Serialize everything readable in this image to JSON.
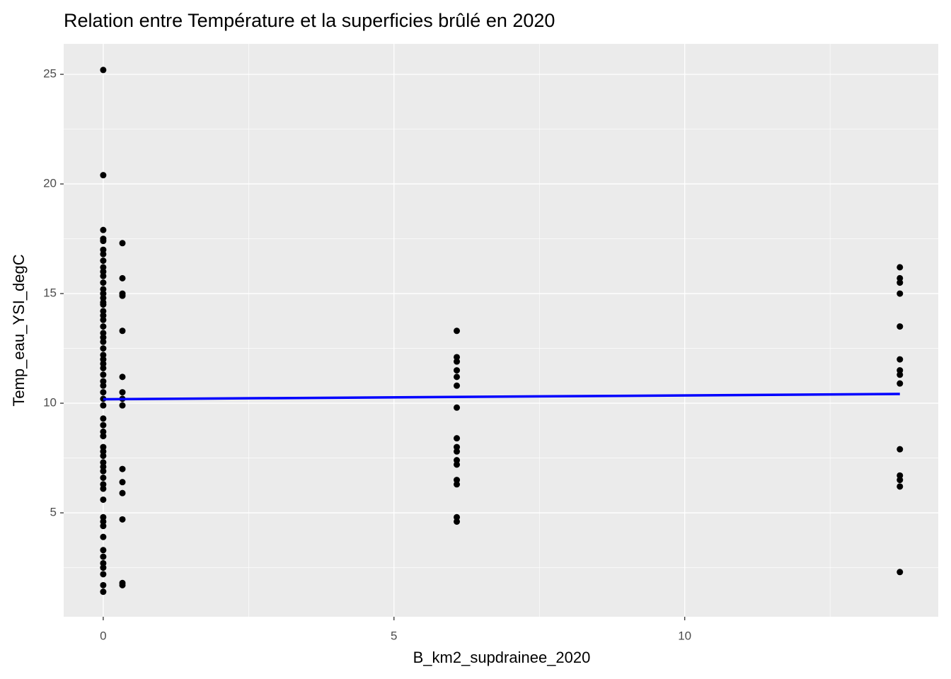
{
  "chart_data": {
    "type": "scatter",
    "title": "Relation entre Température et la superficies brûlé en 2020",
    "x_label": "B_km2_supdrainee_2020",
    "y_label": "Temp_eau_YSI_degC",
    "xlim": [
      -0.68,
      14.36
    ],
    "ylim": [
      0.26,
      26.39
    ],
    "xticks": [
      0,
      5,
      10
    ],
    "yticks": [
      5,
      10,
      15,
      20,
      25
    ],
    "x_minor_ticks": [
      2.5,
      7.5,
      12.5
    ],
    "y_minor_ticks": [
      2.5,
      7.5,
      12.5,
      17.5,
      22.5
    ],
    "grid": true,
    "point_color": "#000000",
    "groups": [
      {
        "x": 0,
        "y": [
          25.2,
          20.4,
          17.9,
          17.5,
          17.4,
          17.0,
          16.8,
          16.5,
          16.2,
          16.0,
          15.8,
          15.5,
          15.2,
          15.0,
          14.8,
          14.6,
          14.5,
          14.2,
          14.0,
          13.8,
          13.5,
          13.2,
          13.0,
          12.8,
          12.5,
          12.2,
          12.0,
          11.8,
          11.6,
          11.3,
          11.0,
          10.8,
          10.5,
          10.2,
          9.9,
          9.3,
          9.0,
          8.7,
          8.5,
          8.0,
          7.8,
          7.6,
          7.3,
          7.1,
          6.9,
          6.6,
          6.3,
          6.1,
          5.6,
          4.8,
          4.6,
          4.4,
          3.9,
          3.3,
          3.0,
          2.7,
          2.5,
          2.2,
          1.7,
          1.4
        ]
      },
      {
        "x": 0.33,
        "y": [
          17.3,
          15.7,
          15.0,
          14.9,
          13.3,
          11.2,
          10.5,
          10.2,
          9.9,
          7.0,
          6.4,
          5.9,
          4.7,
          1.8,
          1.7
        ]
      },
      {
        "x": 6.08,
        "y": [
          13.3,
          12.1,
          11.9,
          11.5,
          11.2,
          10.8,
          9.8,
          8.4,
          8.0,
          7.8,
          7.4,
          7.2,
          6.5,
          6.3,
          4.8,
          4.6
        ]
      },
      {
        "x": 13.7,
        "y": [
          16.2,
          15.7,
          15.5,
          15.0,
          13.5,
          12.0,
          11.5,
          11.3,
          10.9,
          7.9,
          6.7,
          6.5,
          6.2,
          2.3
        ]
      }
    ],
    "trend": {
      "color": "#0000ff",
      "x": [
        0,
        13.7
      ],
      "y": [
        10.18,
        10.42
      ]
    }
  }
}
